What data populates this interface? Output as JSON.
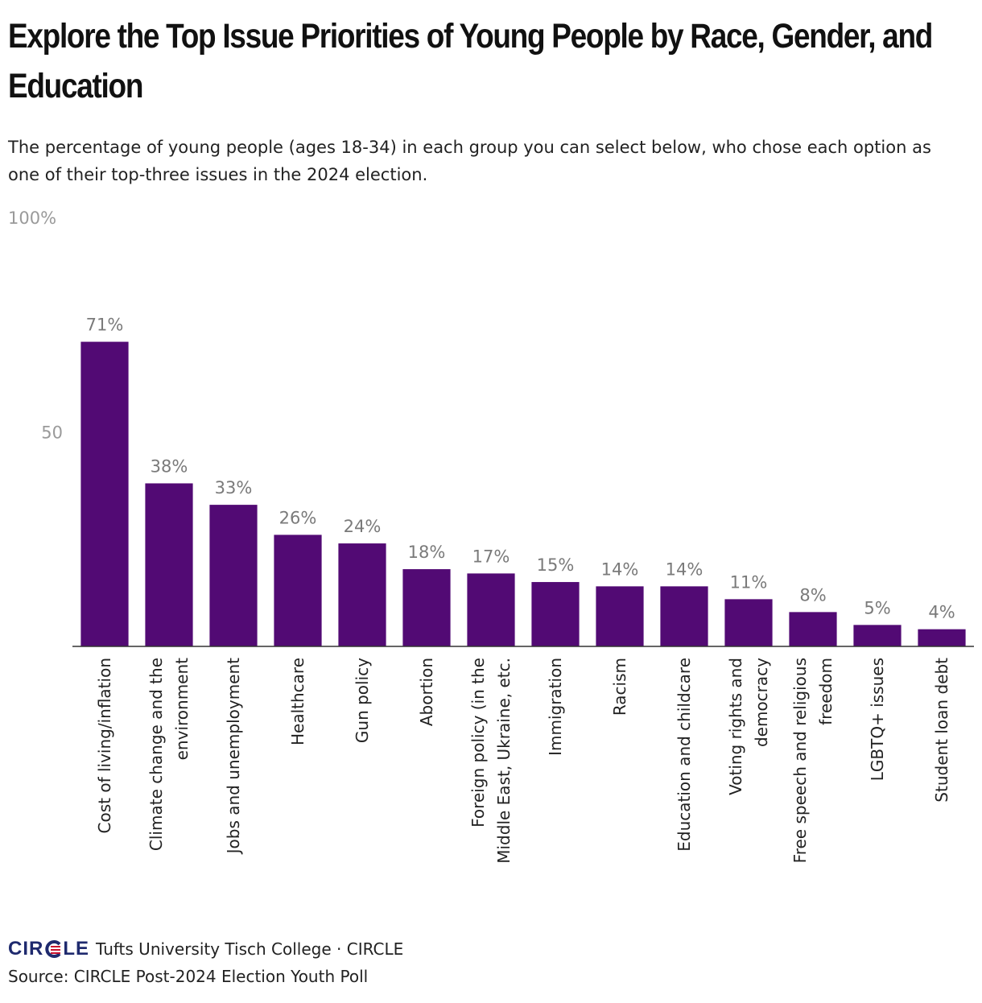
{
  "title": "Explore the Top Issue Priorities of Young People by Race, Gender, and Education",
  "subtitle": "The percentage of young people (ages 18-34) in each group you can select below, who chose each option as one of their top-three issues in the 2024 election.",
  "colors": {
    "bar": "#520a74",
    "logo_blue": "#1f2a6e",
    "logo_red": "#c8102e"
  },
  "footer": {
    "logo_text_left": "CIR",
    "logo_text_right": "LE",
    "credit": "Tufts University Tisch College · CIRCLE",
    "source": "Source: CIRCLE Post-2024 Election Youth Poll"
  },
  "chart_data": {
    "type": "bar",
    "categories": [
      "Cost of living/inflation",
      "Climate change and the environment",
      "Jobs and unemployment",
      "Healthcare",
      "Gun policy",
      "Abortion",
      "Foreign policy (in the Middle East, Ukraine, etc.",
      "Immigration",
      "Racism",
      "Education and childcare",
      "Voting rights and democracy",
      "Free speech and religious freedom",
      "LGBTQ+ issues",
      "Student loan debt"
    ],
    "category_lines": [
      [
        "Cost of living/inflation"
      ],
      [
        "Climate change and the",
        "environment"
      ],
      [
        "Jobs and unemployment"
      ],
      [
        "Healthcare"
      ],
      [
        "Gun policy"
      ],
      [
        "Abortion"
      ],
      [
        "Foreign policy (in the",
        "Middle East, Ukraine, etc."
      ],
      [
        "Immigration"
      ],
      [
        "Racism"
      ],
      [
        "Education and childcare"
      ],
      [
        "Voting rights and",
        "democracy"
      ],
      [
        "Free speech and religious",
        "freedom"
      ],
      [
        "LGBTQ+ issues"
      ],
      [
        "Student loan debt"
      ]
    ],
    "values": [
      71,
      38,
      33,
      26,
      24,
      18,
      17,
      15,
      14,
      14,
      11,
      8,
      5,
      4
    ],
    "data_labels": [
      "71%",
      "38%",
      "33%",
      "26%",
      "24%",
      "18%",
      "17%",
      "15%",
      "14%",
      "14%",
      "11%",
      "8%",
      "5%",
      "4%"
    ],
    "y_ticks": [
      {
        "value": 100,
        "label": "100%"
      },
      {
        "value": 50,
        "label": "50"
      }
    ],
    "ylim": [
      0,
      100
    ],
    "grid": false
  }
}
